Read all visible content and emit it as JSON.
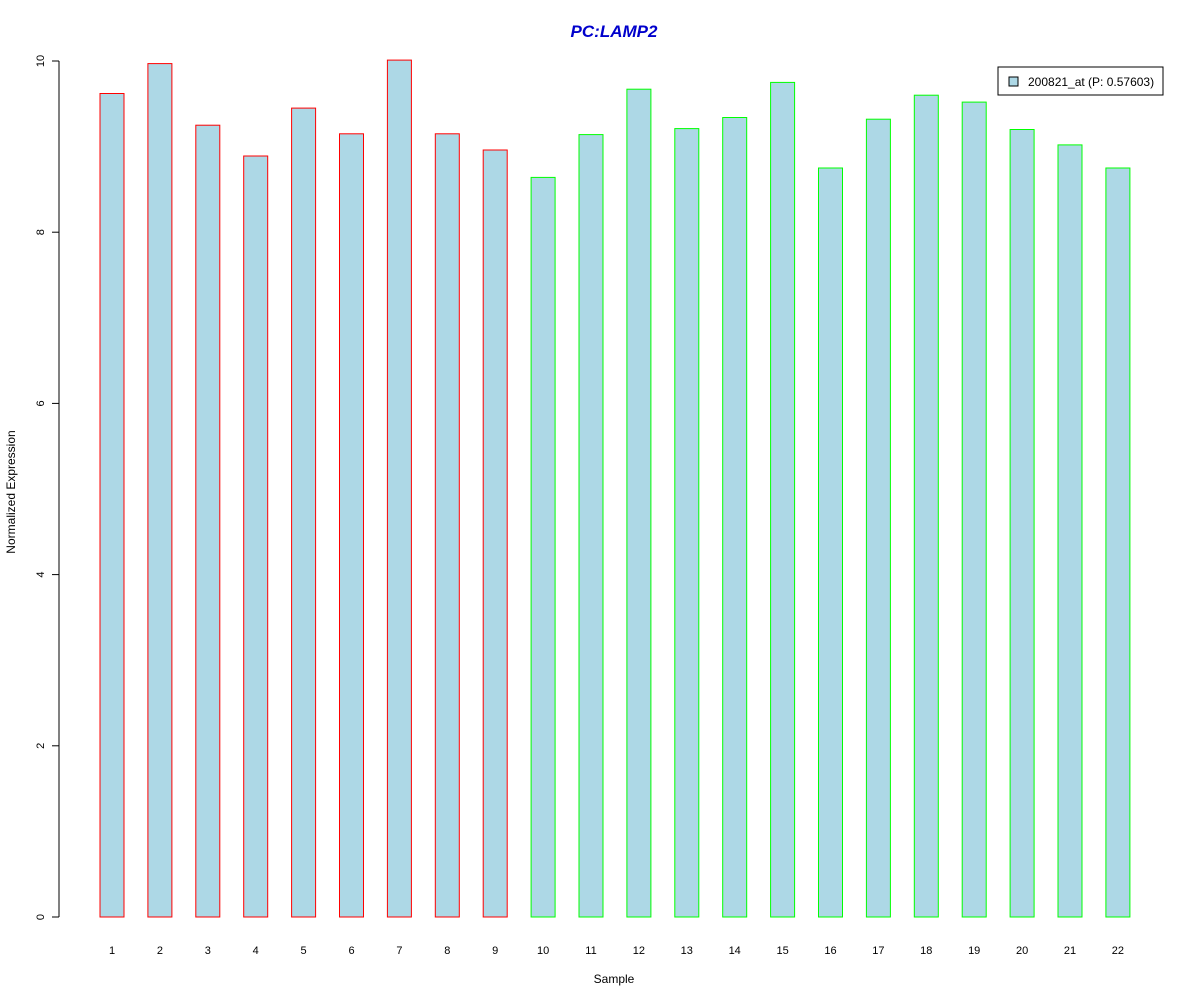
{
  "chart_data": {
    "type": "bar",
    "title": "PC:LAMP2",
    "xlabel": "Sample",
    "ylabel": "Normalized Expression",
    "categories": [
      "1",
      "2",
      "3",
      "4",
      "5",
      "6",
      "7",
      "8",
      "9",
      "10",
      "11",
      "12",
      "13",
      "14",
      "15",
      "16",
      "17",
      "18",
      "19",
      "20",
      "21",
      "22"
    ],
    "series": [
      {
        "name": "200821_at (P: 0.57603)",
        "values": [
          9.62,
          9.97,
          9.25,
          8.89,
          9.45,
          9.15,
          10.01,
          9.15,
          8.96,
          8.64,
          9.14,
          9.67,
          9.21,
          9.34,
          9.75,
          8.75,
          9.32,
          9.6,
          9.52,
          9.2,
          9.02,
          8.75
        ]
      }
    ],
    "ylim": [
      0,
      10
    ],
    "yticks": [
      0,
      2,
      4,
      6,
      8,
      10
    ],
    "grid": false,
    "legend_position": "top-right",
    "colors": {
      "bar_fill": "#add8e6",
      "group1_border": "#ff0000",
      "group2_border": "#00ff00",
      "title": "#0000cc"
    },
    "border_groups": [
      "group1",
      "group1",
      "group1",
      "group1",
      "group1",
      "group1",
      "group1",
      "group1",
      "group1",
      "group2",
      "group2",
      "group2",
      "group2",
      "group2",
      "group2",
      "group2",
      "group2",
      "group2",
      "group2",
      "group2",
      "group2",
      "group2"
    ]
  }
}
